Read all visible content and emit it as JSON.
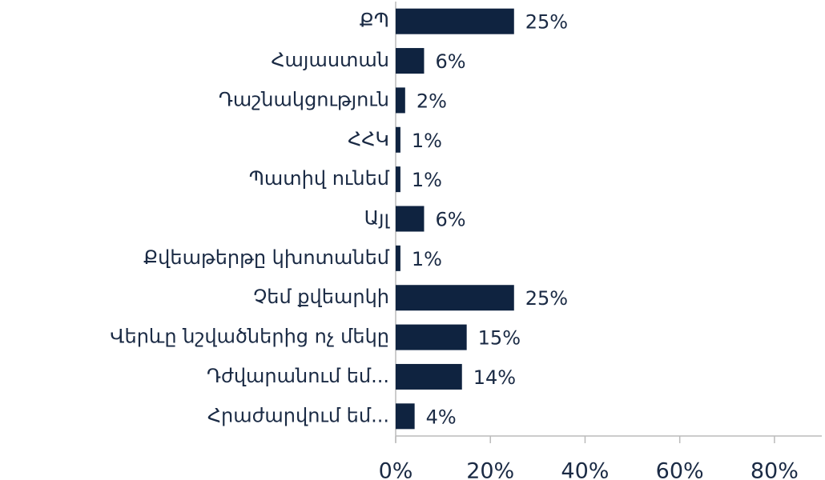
{
  "chart_data": {
    "type": "hbar",
    "categories": [
      "ՔՊ",
      "Հայաստան",
      "Դաշնակցություն",
      "ՀՀԿ",
      "Պատիվ ունեմ",
      "Այլ",
      "Քվեաթերթը կխոտանեմ",
      "Չեմ քվեարկի",
      "Վերևը նշվածներից ոչ մեկը",
      "Դժվարանում եմ...",
      "Հրաժարվում եմ..."
    ],
    "values": [
      25,
      6,
      2,
      1,
      1,
      6,
      1,
      25,
      15,
      14,
      4
    ],
    "value_labels": [
      "25%",
      "6%",
      "2%",
      "1%",
      "1%",
      "6%",
      "1%",
      "25%",
      "15%",
      "14%",
      "4%"
    ],
    "color": "#0f2340",
    "xlim": [
      0,
      90
    ],
    "xticks": [
      {
        "value": 0,
        "label": "0%"
      },
      {
        "value": 20,
        "label": "20%"
      },
      {
        "value": 40,
        "label": "40%"
      },
      {
        "value": 60,
        "label": "60%"
      },
      {
        "value": 80,
        "label": "80%"
      }
    ]
  }
}
